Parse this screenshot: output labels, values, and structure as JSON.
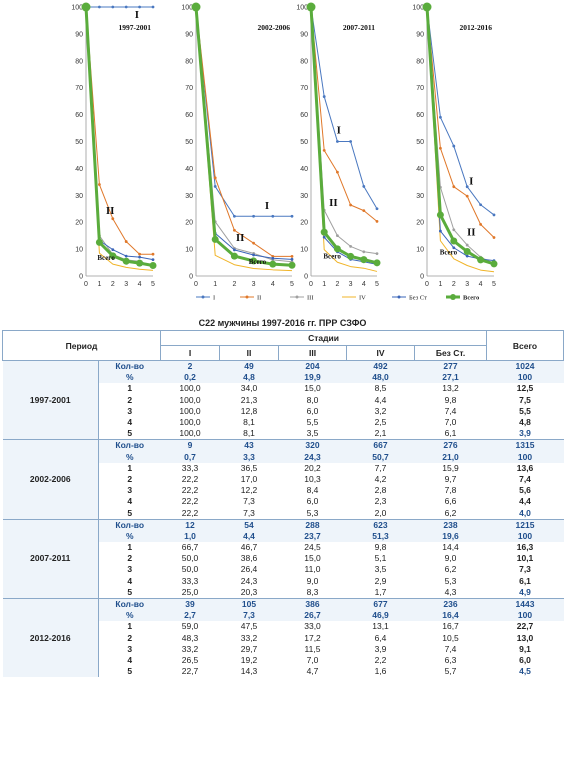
{
  "charts": {
    "y_ticks": [
      "0",
      "10",
      "20",
      "30",
      "40",
      "50",
      "60",
      "70",
      "80",
      "90",
      "100"
    ],
    "x_ticks": [
      "0",
      "1",
      "2",
      "3",
      "4",
      "5"
    ],
    "panels": [
      {
        "period": "1997-2001",
        "labels": [
          {
            "text": "I",
            "x": 3.8,
            "y": 96
          },
          {
            "text": "II",
            "x": 1.8,
            "y": 23
          },
          {
            "text": "Всего",
            "x": 1.5,
            "y": 6
          }
        ]
      },
      {
        "period": "2002-2006",
        "labels": [
          {
            "text": "I",
            "x": 3.7,
            "y": 25
          },
          {
            "text": "II",
            "x": 2.3,
            "y": 13
          },
          {
            "text": "Всего",
            "x": 3.2,
            "y": 4.5
          }
        ]
      },
      {
        "period": "2007-2011",
        "labels": [
          {
            "text": "I",
            "x": 2.1,
            "y": 53
          },
          {
            "text": "II",
            "x": 1.7,
            "y": 26
          },
          {
            "text": "Всего",
            "x": 1.6,
            "y": 6.5
          }
        ]
      },
      {
        "period": "2012-2016",
        "labels": [
          {
            "text": "I",
            "x": 3.3,
            "y": 34
          },
          {
            "text": "II",
            "x": 3.3,
            "y": 15
          },
          {
            "text": "Всего",
            "x": 1.6,
            "y": 8
          }
        ]
      }
    ],
    "legend": [
      "I",
      "II",
      "III",
      "IV",
      "Без Ст",
      "Всего"
    ]
  },
  "colors": {
    "I": "#4a78c0",
    "II": "#e0782a",
    "III": "#a0a0a0",
    "IV": "#f0b428",
    "none": "#3a64b8",
    "total": "#5aac3c"
  },
  "chart_data": [
    {
      "type": "line",
      "title": "1997-2001",
      "x": [
        0,
        1,
        2,
        3,
        4,
        5
      ],
      "ylim": [
        0,
        100
      ],
      "series": [
        {
          "name": "I",
          "values": [
            100,
            100,
            100,
            100,
            100,
            100
          ]
        },
        {
          "name": "II",
          "values": [
            100,
            34.0,
            21.3,
            12.8,
            8.1,
            8.1
          ]
        },
        {
          "name": "III",
          "values": [
            100,
            15.0,
            8.0,
            6.0,
            5.5,
            3.5
          ]
        },
        {
          "name": "IV",
          "values": [
            100,
            8.5,
            4.4,
            3.2,
            2.5,
            2.1
          ]
        },
        {
          "name": "Без Ст",
          "values": [
            100,
            13.2,
            9.8,
            7.4,
            7.0,
            6.1
          ]
        },
        {
          "name": "Всего",
          "values": [
            100,
            12.5,
            7.5,
            5.5,
            4.8,
            3.9
          ]
        }
      ]
    },
    {
      "type": "line",
      "title": "2002-2006",
      "x": [
        0,
        1,
        2,
        3,
        4,
        5
      ],
      "ylim": [
        0,
        100
      ],
      "series": [
        {
          "name": "I",
          "values": [
            100,
            33.3,
            22.2,
            22.2,
            22.2,
            22.2
          ]
        },
        {
          "name": "II",
          "values": [
            100,
            36.5,
            17.0,
            12.2,
            7.3,
            7.3
          ]
        },
        {
          "name": "III",
          "values": [
            100,
            20.2,
            10.3,
            8.4,
            6.0,
            5.3
          ]
        },
        {
          "name": "IV",
          "values": [
            100,
            7.7,
            4.2,
            2.8,
            2.3,
            2.0
          ]
        },
        {
          "name": "Без Ст",
          "values": [
            100,
            15.9,
            9.7,
            7.8,
            6.6,
            6.2
          ]
        },
        {
          "name": "Всего",
          "values": [
            100,
            13.6,
            7.4,
            5.6,
            4.4,
            4.0
          ]
        }
      ]
    },
    {
      "type": "line",
      "title": "2007-2011",
      "x": [
        0,
        1,
        2,
        3,
        4,
        5
      ],
      "ylim": [
        0,
        100
      ],
      "series": [
        {
          "name": "I",
          "values": [
            100,
            66.7,
            50.0,
            50.0,
            33.3,
            25.0
          ]
        },
        {
          "name": "II",
          "values": [
            100,
            46.7,
            38.6,
            26.4,
            24.3,
            20.3
          ]
        },
        {
          "name": "III",
          "values": [
            100,
            24.5,
            15.0,
            11.0,
            9.0,
            8.3
          ]
        },
        {
          "name": "IV",
          "values": [
            100,
            9.8,
            5.1,
            3.5,
            2.9,
            1.7
          ]
        },
        {
          "name": "Без Ст",
          "values": [
            100,
            14.4,
            9.0,
            6.2,
            5.3,
            4.3
          ]
        },
        {
          "name": "Всего",
          "values": [
            100,
            16.3,
            10.1,
            7.3,
            6.1,
            4.9
          ]
        }
      ]
    },
    {
      "type": "line",
      "title": "2012-2016",
      "x": [
        0,
        1,
        2,
        3,
        4,
        5
      ],
      "ylim": [
        0,
        100
      ],
      "series": [
        {
          "name": "I",
          "values": [
            100,
            59.0,
            48.3,
            33.2,
            26.5,
            22.7
          ]
        },
        {
          "name": "II",
          "values": [
            100,
            47.5,
            33.2,
            29.7,
            19.2,
            14.3
          ]
        },
        {
          "name": "III",
          "values": [
            100,
            33.0,
            17.2,
            11.5,
            7.0,
            4.7
          ]
        },
        {
          "name": "IV",
          "values": [
            100,
            13.1,
            6.4,
            3.9,
            2.2,
            1.6
          ]
        },
        {
          "name": "Без Ст",
          "values": [
            100,
            16.7,
            10.5,
            7.4,
            6.3,
            5.7
          ]
        },
        {
          "name": "Всего",
          "values": [
            100,
            22.7,
            13.0,
            9.1,
            6.0,
            4.5
          ]
        }
      ]
    }
  ],
  "table": {
    "title": "С22 мужчины 1997-2016 гг. ПРР СЗФО",
    "headers": {
      "period": "Период",
      "stages": "Стадии",
      "cols": [
        "I",
        "II",
        "III",
        "IV",
        "Без Ст."
      ],
      "total": "Всего"
    },
    "blocks": [
      {
        "period": "1997-2001",
        "rows": [
          {
            "label": "Кол-во",
            "cells": [
              "2",
              "49",
              "204",
              "492",
              "277"
            ],
            "total": "1024"
          },
          {
            "label": "%",
            "cells": [
              "0,2",
              "4,8",
              "19,9",
              "48,0",
              "27,1"
            ],
            "total": "100"
          },
          {
            "label": "1",
            "cells": [
              "100,0",
              "34,0",
              "15,0",
              "8,5",
              "13,2"
            ],
            "total": "12,5"
          },
          {
            "label": "2",
            "cells": [
              "100,0",
              "21,3",
              "8,0",
              "4,4",
              "9,8"
            ],
            "total": "7,5"
          },
          {
            "label": "3",
            "cells": [
              "100,0",
              "12,8",
              "6,0",
              "3,2",
              "7,4"
            ],
            "total": "5,5"
          },
          {
            "label": "4",
            "cells": [
              "100,0",
              "8,1",
              "5,5",
              "2,5",
              "7,0"
            ],
            "total": "4,8"
          },
          {
            "label": "5",
            "cells": [
              "100,0",
              "8,1",
              "3,5",
              "2,1",
              "6,1"
            ],
            "total": "3,9"
          }
        ]
      },
      {
        "period": "2002-2006",
        "rows": [
          {
            "label": "Кол-во",
            "cells": [
              "9",
              "43",
              "320",
              "667",
              "276"
            ],
            "total": "1315"
          },
          {
            "label": "%",
            "cells": [
              "0,7",
              "3,3",
              "24,3",
              "50,7",
              "21,0"
            ],
            "total": "100"
          },
          {
            "label": "1",
            "cells": [
              "33,3",
              "36,5",
              "20,2",
              "7,7",
              "15,9"
            ],
            "total": "13,6"
          },
          {
            "label": "2",
            "cells": [
              "22,2",
              "17,0",
              "10,3",
              "4,2",
              "9,7"
            ],
            "total": "7,4"
          },
          {
            "label": "3",
            "cells": [
              "22,2",
              "12,2",
              "8,4",
              "2,8",
              "7,8"
            ],
            "total": "5,6"
          },
          {
            "label": "4",
            "cells": [
              "22,2",
              "7,3",
              "6,0",
              "2,3",
              "6,6"
            ],
            "total": "4,4"
          },
          {
            "label": "5",
            "cells": [
              "22,2",
              "7,3",
              "5,3",
              "2,0",
              "6,2"
            ],
            "total": "4,0"
          }
        ]
      },
      {
        "period": "2007-2011",
        "rows": [
          {
            "label": "Кол-во",
            "cells": [
              "12",
              "54",
              "288",
              "623",
              "238"
            ],
            "total": "1215"
          },
          {
            "label": "%",
            "cells": [
              "1,0",
              "4,4",
              "23,7",
              "51,3",
              "19,6"
            ],
            "total": "100"
          },
          {
            "label": "1",
            "cells": [
              "66,7",
              "46,7",
              "24,5",
              "9,8",
              "14,4"
            ],
            "total": "16,3"
          },
          {
            "label": "2",
            "cells": [
              "50,0",
              "38,6",
              "15,0",
              "5,1",
              "9,0"
            ],
            "total": "10,1"
          },
          {
            "label": "3",
            "cells": [
              "50,0",
              "26,4",
              "11,0",
              "3,5",
              "6,2"
            ],
            "total": "7,3"
          },
          {
            "label": "4",
            "cells": [
              "33,3",
              "24,3",
              "9,0",
              "2,9",
              "5,3"
            ],
            "total": "6,1"
          },
          {
            "label": "5",
            "cells": [
              "25,0",
              "20,3",
              "8,3",
              "1,7",
              "4,3"
            ],
            "total": "4,9"
          }
        ]
      },
      {
        "period": "2012-2016",
        "rows": [
          {
            "label": "Кол-во",
            "cells": [
              "39",
              "105",
              "386",
              "677",
              "236"
            ],
            "total": "1443"
          },
          {
            "label": "%",
            "cells": [
              "2,7",
              "7,3",
              "26,7",
              "46,9",
              "16,4"
            ],
            "total": "100"
          },
          {
            "label": "1",
            "cells": [
              "59,0",
              "47,5",
              "33,0",
              "13,1",
              "16,7"
            ],
            "total": "22,7"
          },
          {
            "label": "2",
            "cells": [
              "48,3",
              "33,2",
              "17,2",
              "6,4",
              "10,5"
            ],
            "total": "13,0"
          },
          {
            "label": "3",
            "cells": [
              "33,2",
              "29,7",
              "11,5",
              "3,9",
              "7,4"
            ],
            "total": "9,1"
          },
          {
            "label": "4",
            "cells": [
              "26,5",
              "19,2",
              "7,0",
              "2,2",
              "6,3"
            ],
            "total": "6,0"
          },
          {
            "label": "5",
            "cells": [
              "22,7",
              "14,3",
              "4,7",
              "1,6",
              "5,7"
            ],
            "total": "4,5"
          }
        ]
      }
    ]
  }
}
